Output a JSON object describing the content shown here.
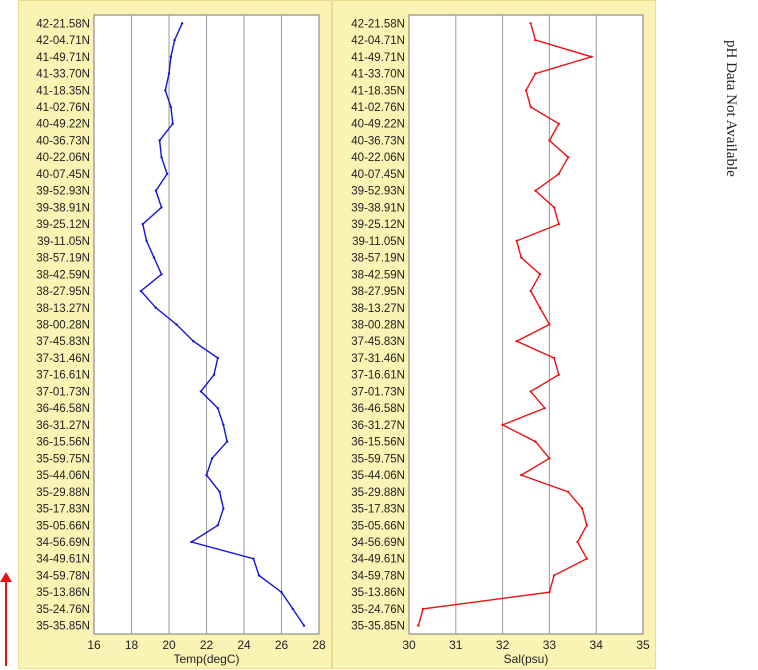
{
  "chart_data": [
    {
      "type": "line",
      "xlabel": "Temp(degC)",
      "ylabel": "",
      "title": "",
      "xlim": [
        16,
        28
      ],
      "xticks": [
        16,
        18,
        20,
        22,
        24,
        26,
        28
      ],
      "grid": true,
      "line_color": "#1414d9",
      "y_categories": [
        "42-21.58N",
        "42-04.71N",
        "41-49.71N",
        "41-33.70N",
        "41-18.35N",
        "41-02.76N",
        "40-49.22N",
        "40-36.73N",
        "40-22.06N",
        "40-07.45N",
        "39-52.93N",
        "39-38.91N",
        "39-25.12N",
        "39-11.05N",
        "38-57.19N",
        "38-42.59N",
        "38-27.95N",
        "38-13.27N",
        "38-00.28N",
        "37-45.83N",
        "37-31.46N",
        "37-16.61N",
        "37-01.73N",
        "36-46.58N",
        "36-31.27N",
        "36-15.56N",
        "35-59.75N",
        "35-44.06N",
        "35-29.88N",
        "35-17.83N",
        "35-05.66N",
        "34-56.69N",
        "34-49.61N",
        "34-59.78N",
        "35-13.86N",
        "35-24.76N",
        "35-35.85N"
      ],
      "series": [
        {
          "values": [
            20.7,
            20.3,
            20.1,
            20.0,
            19.8,
            20.1,
            20.2,
            19.5,
            19.6,
            19.9,
            19.3,
            19.6,
            18.6,
            18.8,
            19.2,
            19.6,
            18.5,
            19.3,
            20.4,
            21.3,
            22.6,
            22.4,
            21.7,
            22.6,
            22.9,
            23.1,
            22.3,
            22.0,
            22.7,
            22.9,
            22.6,
            21.2,
            24.5,
            24.8,
            26.0,
            26.6,
            27.2
          ]
        }
      ]
    },
    {
      "type": "line",
      "xlabel": "Sal(psu)",
      "ylabel": "",
      "title": "",
      "xlim": [
        30,
        35
      ],
      "xticks": [
        30,
        31,
        32,
        33,
        34,
        35
      ],
      "grid": true,
      "line_color": "#ee1111",
      "y_categories": [
        "42-21.58N",
        "42-04.71N",
        "41-49.71N",
        "41-33.70N",
        "41-18.35N",
        "41-02.76N",
        "40-49.22N",
        "40-36.73N",
        "40-22.06N",
        "40-07.45N",
        "39-52.93N",
        "39-38.91N",
        "39-25.12N",
        "39-11.05N",
        "38-57.19N",
        "38-42.59N",
        "38-27.95N",
        "38-13.27N",
        "38-00.28N",
        "37-45.83N",
        "37-31.46N",
        "37-16.61N",
        "37-01.73N",
        "36-46.58N",
        "36-31.27N",
        "36-15.56N",
        "35-59.75N",
        "35-44.06N",
        "35-29.88N",
        "35-17.83N",
        "35-05.66N",
        "34-56.69N",
        "34-49.61N",
        "34-59.78N",
        "35-13.86N",
        "35-24.76N",
        "35-35.85N"
      ],
      "series": [
        {
          "values": [
            32.6,
            32.7,
            33.9,
            32.7,
            32.5,
            32.6,
            33.2,
            33.0,
            33.4,
            33.2,
            32.7,
            33.1,
            33.2,
            32.3,
            32.4,
            32.8,
            32.6,
            32.8,
            33.0,
            32.3,
            33.1,
            33.2,
            32.6,
            32.9,
            32.0,
            32.7,
            33.0,
            32.4,
            33.4,
            33.7,
            33.8,
            33.6,
            33.8,
            33.1,
            33.0,
            30.3,
            30.2
          ]
        }
      ]
    }
  ],
  "side_note": "pH Data Not Available",
  "arrow_color": "#ee1111"
}
